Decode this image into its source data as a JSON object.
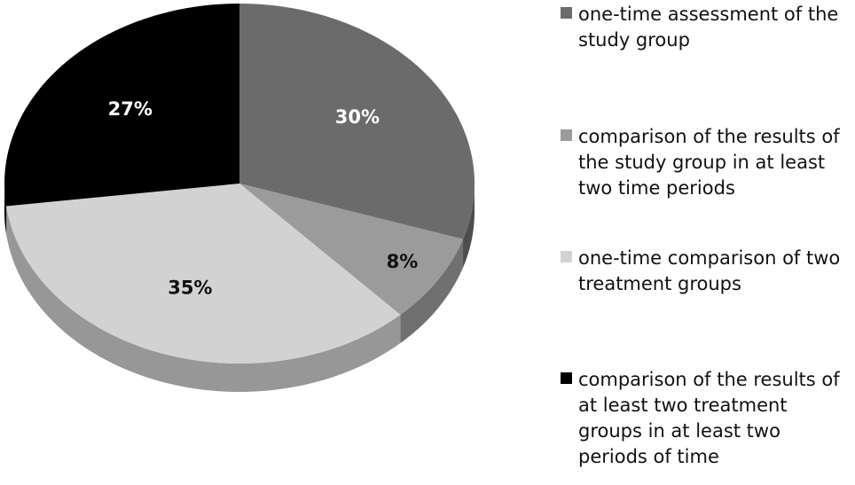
{
  "chart_data": {
    "type": "pie",
    "categories": [
      "one-time assessment of the study group",
      "comparison of the results of the study group in at least two time periods",
      "one-time comparison of two treatment groups",
      "comparison of the results of at least two treatment groups in at least two periods of time"
    ],
    "values": [
      30,
      8,
      35,
      27
    ],
    "value_labels": [
      "30%",
      "8%",
      "35%",
      "27%"
    ],
    "colors": [
      "#6b6b6b",
      "#9b9b9b",
      "#d2d2d2",
      "#000000"
    ],
    "legend": "right"
  }
}
